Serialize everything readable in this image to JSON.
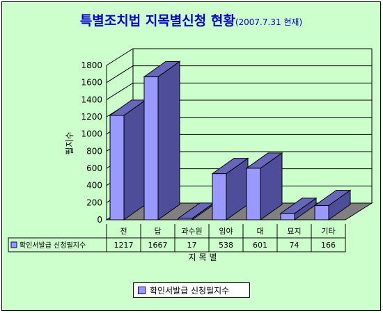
{
  "title": "특별조치법 지목별신청 현황",
  "subtitle": "(2007.7.31 현재)",
  "chart_data": {
    "type": "bar",
    "title": "특별조치법 지목별신청 현황",
    "subtitle": "(2007.7.31 현재)",
    "categories": [
      "전",
      "답",
      "과수원",
      "임야",
      "대",
      "묘지",
      "기타"
    ],
    "series": [
      {
        "name": "확인서발급 신청필지수",
        "values": [
          1217,
          1667,
          17,
          538,
          601,
          74,
          166
        ]
      }
    ],
    "xlabel": "지 목 별",
    "ylabel": "필지수",
    "ylim": [
      0,
      1800
    ],
    "yticks": [
      0,
      200,
      400,
      600,
      800,
      1000,
      1200,
      1400,
      1600,
      1800
    ],
    "grid": true,
    "legend": "bottom",
    "data_table": true,
    "colors": {
      "bar_front": "#9999ff",
      "bar_side": "#4d4d99",
      "bar_top": "#6666bb",
      "floor": "#808080",
      "background": "#ccffcc",
      "title": "#0000cc"
    }
  }
}
